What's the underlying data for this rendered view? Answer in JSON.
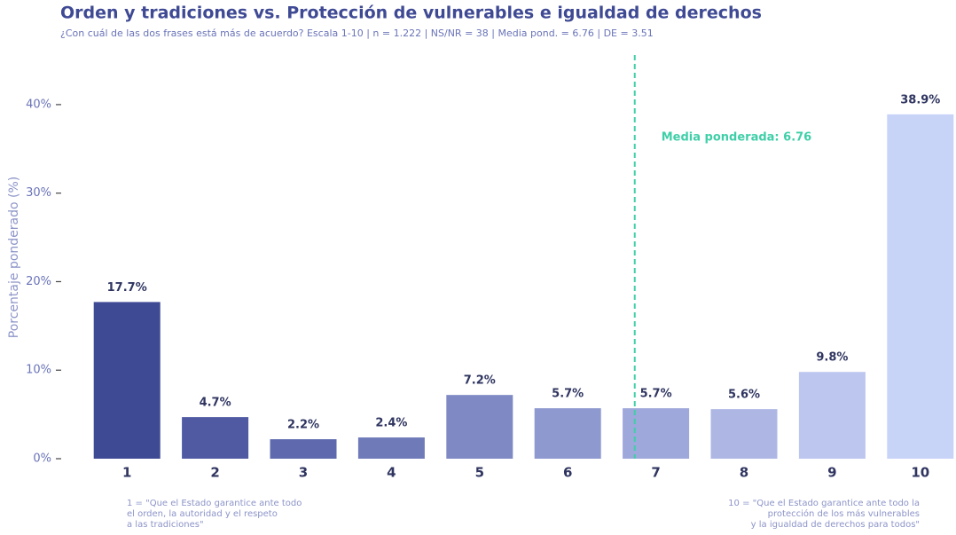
{
  "chart_data": {
    "type": "bar",
    "title": "Orden y tradiciones vs. Protección de vulnerables e igualdad de derechos",
    "subtitle": "¿Con cuál de las dos frases está más de acuerdo? Escala 1-10 | n = 1.222 | NS/NR = 38 | Media pond. = 6.76 | DE = 3.51",
    "y_label": "Porcentaje ponderado (%)",
    "categories": [
      "1",
      "2",
      "3",
      "4",
      "5",
      "6",
      "7",
      "8",
      "9",
      "10"
    ],
    "values": [
      17.7,
      4.7,
      2.2,
      2.4,
      7.2,
      5.7,
      5.7,
      5.6,
      9.8,
      38.9
    ],
    "value_labels": [
      "17.7%",
      "4.7%",
      "2.2%",
      "2.4%",
      "7.2%",
      "5.7%",
      "5.7%",
      "5.6%",
      "9.8%",
      "38.9%"
    ],
    "colors": [
      "#3f4a94",
      "#4f5aa3",
      "#5f6aae",
      "#6f7ab9",
      "#7f8ac4",
      "#8e99cf",
      "#9ea8da",
      "#aeb7e4",
      "#bcc6ef",
      "#c8d3f8"
    ],
    "ylim": [
      0,
      44
    ],
    "yticks": [
      {
        "value": 0,
        "label": "0%"
      },
      {
        "value": 10,
        "label": "10%"
      },
      {
        "value": 20,
        "label": "20%"
      },
      {
        "value": 30,
        "label": "30%"
      },
      {
        "value": 40,
        "label": "40%"
      }
    ],
    "mean_line": {
      "value": 6.76,
      "label": "Media ponderada: 6.76",
      "color": "#3fcfa8"
    },
    "note_left": [
      "1 = \"Que el Estado garantice ante todo",
      "el orden, la autoridad y el respeto",
      "a las tradiciones\""
    ],
    "note_right": [
      "10 = \"Que el Estado garantice ante todo la",
      "protección de los más vulnerables",
      "y la igualdad de derechos para todos\""
    ]
  }
}
